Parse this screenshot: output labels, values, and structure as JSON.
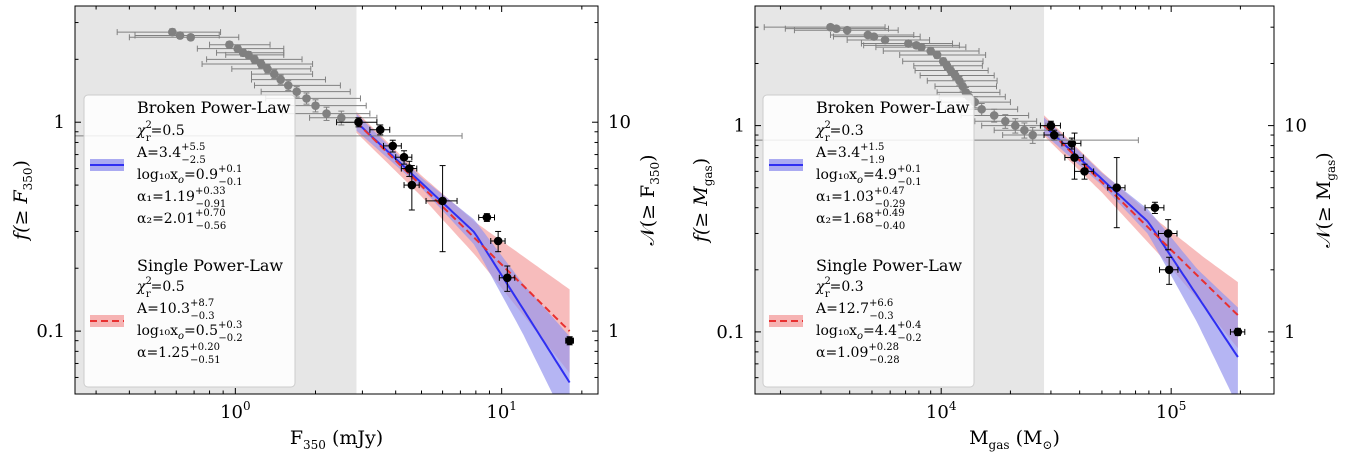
{
  "chart_data": [
    {
      "type": "scatter",
      "xlabel": "F",
      "xlabel_sub": "350",
      "xlabel_unit": " (mJy)",
      "ylabel": "f(≥ F",
      "ylabel_sub": "350",
      "ylabel2": "𝒩(≥ F",
      "ylabel2_sub": "350",
      "xscale": "log",
      "yscale": "log",
      "xlim": [
        0.25,
        23
      ],
      "ylim": [
        0.05,
        3.6
      ],
      "y2_factor": 10,
      "shaded_region_x": [
        0.25,
        2.85
      ],
      "x_ticks": [
        {
          "value": 1,
          "base": "10",
          "exp": "0"
        },
        {
          "value": 10,
          "base": "10",
          "exp": "1"
        }
      ],
      "y_ticks": [
        {
          "value": 0.1,
          "label": "0.1"
        },
        {
          "value": 1,
          "label": "1"
        }
      ],
      "y2_ticks": [
        {
          "value": 0.1,
          "label": "1"
        },
        {
          "value": 1,
          "label": "10"
        }
      ],
      "series": [
        {
          "name": "grey (flux-limited) points",
          "color": "#808080",
          "x": [
            0.58,
            0.62,
            0.68,
            0.95,
            1.02,
            1.07,
            1.12,
            1.18,
            1.25,
            1.32,
            1.4,
            1.48,
            1.58,
            1.7,
            1.85,
            2.0,
            2.2,
            2.5
          ],
          "y": [
            2.7,
            2.6,
            2.55,
            2.35,
            2.25,
            2.15,
            2.1,
            2.0,
            1.9,
            1.8,
            1.7,
            1.6,
            1.5,
            1.4,
            1.3,
            1.2,
            1.1,
            1.05
          ],
          "xerr_lo": [
            0.22,
            0.2,
            0.28,
            0.15,
            0.3,
            0.22,
            0.2,
            0.4,
            0.5,
            0.35,
            0.25,
            0.33,
            0.4,
            0.45,
            0.55,
            0.6,
            0.7,
            0.6
          ],
          "xerr_hi": [
            0.3,
            0.25,
            0.35,
            0.4,
            0.5,
            0.45,
            0.4,
            0.6,
            0.7,
            0.6,
            0.55,
            0.7,
            0.9,
            1.0,
            1.1,
            1.1,
            1.0,
            0.9
          ],
          "yerr": [
            0.1,
            0.08,
            0.08,
            0.08,
            0.08,
            0.08,
            0.08,
            0.08,
            0.08,
            0.08,
            0.08,
            0.08,
            0.08,
            0.08,
            0.08,
            0.08,
            0.08,
            0.08
          ]
        },
        {
          "name": "black (complete) points",
          "color": "#000000",
          "x": [
            2.9,
            3.5,
            3.9,
            4.3,
            4.5,
            4.6,
            6.0,
            8.8,
            9.7,
            10.5,
            18.0
          ],
          "y": [
            1.0,
            0.92,
            0.77,
            0.68,
            0.6,
            0.5,
            0.42,
            0.35,
            0.27,
            0.18,
            0.09
          ],
          "xerr_lo": [
            0.5,
            0.3,
            0.3,
            0.3,
            0.3,
            0.3,
            0.8,
            0.6,
            0.6,
            0.7,
            0.6
          ],
          "xerr_hi": [
            0.5,
            0.3,
            0.3,
            0.3,
            0.3,
            0.3,
            0.8,
            0.6,
            0.6,
            0.7,
            0.6
          ],
          "yerr_lo": [
            0.05,
            0.05,
            0.05,
            0.05,
            0.05,
            0.12,
            0.18,
            0.015,
            0.03,
            0.025,
            0.004
          ],
          "yerr_hi": [
            0.05,
            0.05,
            0.05,
            0.05,
            0.05,
            0.12,
            0.2,
            0.015,
            0.03,
            0.025,
            0.004
          ]
        },
        {
          "name": "outlier",
          "color": "#808080",
          "x": [
            2.9
          ],
          "y": [
            0.86
          ],
          "xerr_lo": [
            2.65
          ],
          "xerr_hi": [
            4.2
          ]
        }
      ],
      "broken_fit": {
        "color": "#2f2ff2",
        "band": "#9595ee",
        "A": 3.4,
        "x0": 7.9,
        "a1": 1.19,
        "a2": 2.01,
        "x_range": [
          2.85,
          18
        ],
        "band_width": [
          [
            2.85,
            0.04
          ],
          [
            5,
            0.025
          ],
          [
            7.9,
            0.06
          ],
          [
            12,
            0.12
          ],
          [
            18,
            0.22
          ]
        ]
      },
      "single_fit": {
        "color": "#e83030",
        "band": "#f4a6a6",
        "A": 10.3,
        "x0": 3.16,
        "a": 1.25,
        "x_range": [
          2.85,
          18
        ],
        "band_width": [
          [
            2.85,
            0.05
          ],
          [
            5,
            0.05
          ],
          [
            8,
            0.08
          ],
          [
            12,
            0.14
          ],
          [
            18,
            0.2
          ]
        ]
      },
      "legend": {
        "broken_title": "Broken Power-Law",
        "broken_lines": [
          {
            "t": "χ",
            "sup": "2",
            "sub": "r",
            "tail": "=0.5"
          },
          {
            "t": "A=3.4",
            "sup": "+5.5",
            "sub": "−2.5",
            "tail": ""
          },
          {
            "t": "log₁₀x",
            "sub1": "o",
            "t2": "=0.9",
            "sup": "+0.1",
            "sub": "−0.1",
            "tail": ""
          },
          {
            "t": "α₁=1.19",
            "sup": "+0.33",
            "sub": "−0.91",
            "tail": ""
          },
          {
            "t": "α₂=2.01",
            "sup": "+0.70",
            "sub": "−0.56",
            "tail": ""
          }
        ],
        "single_title": "Single Power-Law",
        "single_lines": [
          {
            "t": "χ",
            "sup": "2",
            "sub": "r",
            "tail": "=0.5"
          },
          {
            "t": "A=10.3",
            "sup": "+8.7",
            "sub": "−0.3",
            "tail": ""
          },
          {
            "t": "log₁₀x",
            "sub1": "o",
            "t2": "=0.5",
            "sup": "+0.3",
            "sub": "−0.2",
            "tail": ""
          },
          {
            "t": "α=1.25",
            "sup": "+0.20",
            "sub": "−0.51",
            "tail": ""
          }
        ]
      }
    },
    {
      "type": "scatter",
      "xlabel": "M",
      "xlabel_sub": "gas",
      "xlabel_unit": " (M",
      "xlabel_unit_sub": "⊙",
      "xlabel_unit_end": ")",
      "ylabel": "f(≥ M",
      "ylabel_sub": "gas",
      "ylabel2": "𝒩(≥ M",
      "ylabel2_sub": "gas",
      "xscale": "log",
      "yscale": "log",
      "xlim": [
        1550,
        280000
      ],
      "ylim": [
        0.05,
        3.8
      ],
      "y2_factor": 10,
      "shaded_region_x": [
        1550,
        28000
      ],
      "x_ticks": [
        {
          "value": 10000,
          "base": "10",
          "exp": "4"
        },
        {
          "value": 100000,
          "base": "10",
          "exp": "5"
        }
      ],
      "y_ticks": [
        {
          "value": 0.1,
          "label": "0.1"
        },
        {
          "value": 1,
          "label": "1"
        }
      ],
      "y2_ticks": [
        {
          "value": 0.1,
          "label": "1"
        },
        {
          "value": 1,
          "label": "10"
        }
      ],
      "series": [
        {
          "name": "grey (flux-limited) points",
          "color": "#808080",
          "x": [
            3300,
            3500,
            3900,
            4800,
            5100,
            5700,
            7200,
            7800,
            8200,
            9000,
            9600,
            10200,
            10600,
            11000,
            11500,
            12000,
            12400,
            12800,
            13200,
            14000,
            15000,
            17000,
            19000,
            21000,
            23000,
            25000
          ],
          "y": [
            3.0,
            2.95,
            2.9,
            2.75,
            2.7,
            2.6,
            2.5,
            2.45,
            2.4,
            2.3,
            2.2,
            2.05,
            1.95,
            1.85,
            1.75,
            1.65,
            1.55,
            1.45,
            1.38,
            1.3,
            1.2,
            1.12,
            1.05,
            1.0,
            0.95,
            0.9
          ],
          "xerr_lo": [
            1600,
            1400,
            1600,
            1500,
            1700,
            1800,
            2700,
            3200,
            3000,
            3400,
            3000,
            3400,
            3000,
            3300,
            3400,
            3300,
            3000,
            3200,
            3400,
            4000,
            4500,
            4800,
            5000,
            6000,
            6000,
            6500
          ],
          "xerr_hi": [
            2400,
            2400,
            2600,
            2800,
            3000,
            3200,
            4000,
            4200,
            4600,
            5600,
            6000,
            5000,
            4500,
            5000,
            5500,
            5500,
            5000,
            5200,
            5800,
            6000,
            6500,
            7000,
            7000,
            7500,
            7500,
            7500
          ],
          "yerr": [
            0.08,
            0.08,
            0.08,
            0.08,
            0.08,
            0.08,
            0.08,
            0.08,
            0.08,
            0.08,
            0.08,
            0.08,
            0.08,
            0.08,
            0.08,
            0.08,
            0.08,
            0.08,
            0.08,
            0.08,
            0.08,
            0.08,
            0.08,
            0.08,
            0.08,
            0.08
          ]
        },
        {
          "name": "black (complete) points",
          "color": "#000000",
          "x": [
            30000,
            31000,
            37000,
            38000,
            42000,
            58000,
            85000,
            97000,
            98000,
            195000
          ],
          "y": [
            1.0,
            0.9,
            0.82,
            0.7,
            0.6,
            0.5,
            0.4,
            0.3,
            0.2,
            0.1
          ],
          "xerr_lo": [
            3000,
            3000,
            3500,
            3500,
            4000,
            5000,
            8000,
            9000,
            9000,
            14000
          ],
          "xerr_hi": [
            3000,
            3000,
            3500,
            3500,
            4000,
            5000,
            8000,
            9000,
            9000,
            14000
          ],
          "yerr_lo": [
            0.05,
            0.05,
            0.05,
            0.15,
            0.05,
            0.18,
            0.025,
            0.05,
            0.03,
            0.004
          ],
          "yerr_hi": [
            0.05,
            0.05,
            0.05,
            0.22,
            0.05,
            0.2,
            0.025,
            0.05,
            0.03,
            0.004
          ]
        },
        {
          "name": "outlier",
          "color": "#808080",
          "x": [
            30000
          ],
          "y": [
            0.85
          ],
          "xerr_lo": [
            28500
          ],
          "xerr_hi": [
            42000
          ]
        }
      ],
      "broken_fit": {
        "color": "#2f2ff2",
        "band": "#9595ee",
        "A": 3.4,
        "x0": 79400,
        "a1": 1.03,
        "a2": 1.68,
        "x_range": [
          28000,
          195000
        ],
        "band_width": [
          [
            28000,
            0.04
          ],
          [
            50000,
            0.03
          ],
          [
            79400,
            0.06
          ],
          [
            130000,
            0.13
          ],
          [
            195000,
            0.24
          ]
        ]
      },
      "single_fit": {
        "color": "#e83030",
        "band": "#f4a6a6",
        "A": 12.7,
        "x0": 25100,
        "a": 1.09,
        "x_range": [
          28000,
          195000
        ],
        "band_width": [
          [
            28000,
            0.05
          ],
          [
            50000,
            0.05
          ],
          [
            90000,
            0.08
          ],
          [
            140000,
            0.12
          ],
          [
            195000,
            0.16
          ]
        ]
      },
      "legend": {
        "broken_title": "Broken Power-Law",
        "broken_lines": [
          {
            "t": "χ",
            "sup": "2",
            "sub": "r",
            "tail": "=0.3"
          },
          {
            "t": "A=3.4",
            "sup": "+1.5",
            "sub": "−1.9",
            "tail": ""
          },
          {
            "t": "log₁₀x",
            "sub1": "o",
            "t2": "=4.9",
            "sup": "+0.1",
            "sub": "−0.1",
            "tail": ""
          },
          {
            "t": "α₁=1.03",
            "sup": "+0.47",
            "sub": "−0.29",
            "tail": ""
          },
          {
            "t": "α₂=1.68",
            "sup": "+0.49",
            "sub": "−0.40",
            "tail": ""
          }
        ],
        "single_title": "Single Power-Law",
        "single_lines": [
          {
            "t": "χ",
            "sup": "2",
            "sub": "r",
            "tail": "=0.3"
          },
          {
            "t": "A=12.7",
            "sup": "+6.6",
            "sub": "−0.3",
            "tail": ""
          },
          {
            "t": "log₁₀x",
            "sub1": "o",
            "t2": "=4.4",
            "sup": "+0.4",
            "sub": "−0.2",
            "tail": ""
          },
          {
            "t": "α=1.09",
            "sup": "+0.28",
            "sub": "−0.28",
            "tail": ""
          }
        ]
      }
    }
  ]
}
